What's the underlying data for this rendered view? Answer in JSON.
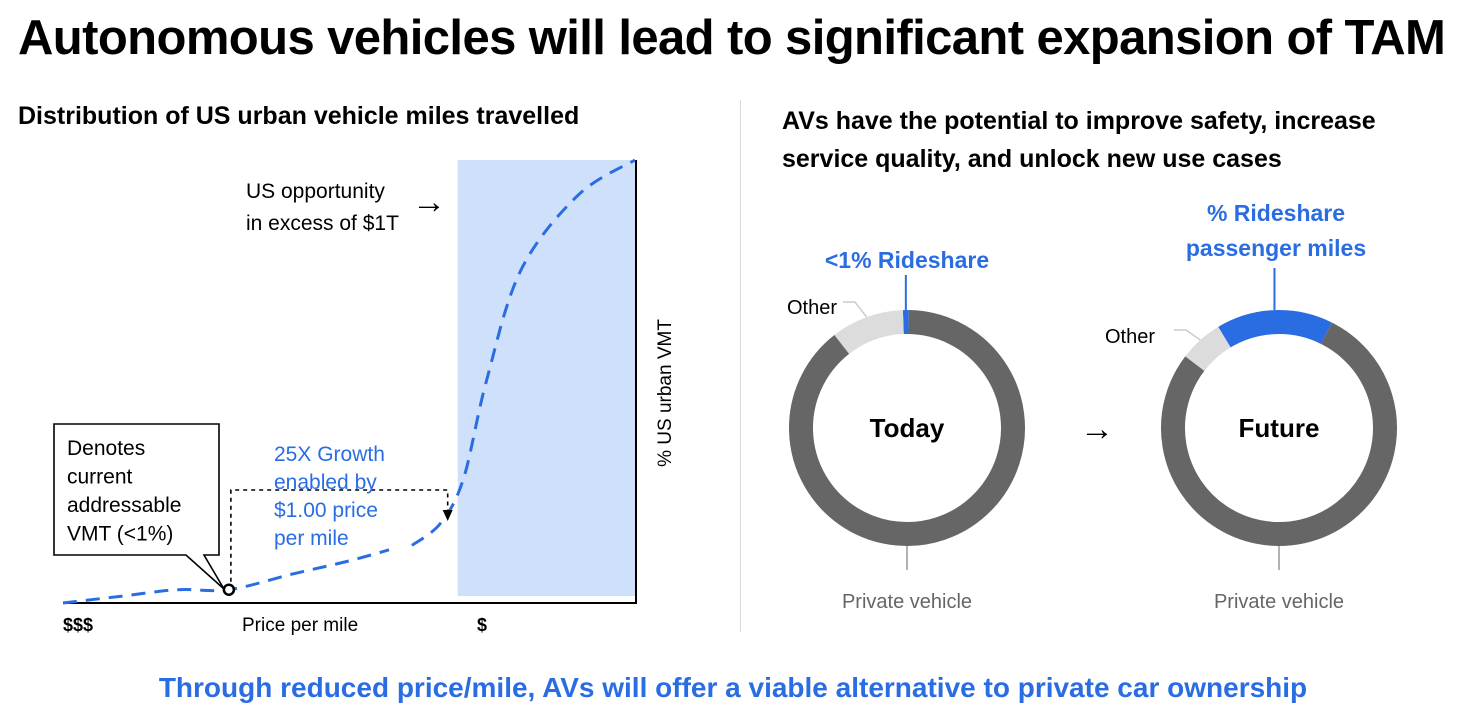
{
  "title": "Autonomous vehicles will lead to significant expansion of TAM",
  "left": {
    "subtitle": "Distribution of US urban vehicle miles travelled"
  },
  "right": {
    "subtitle": "AVs have the potential to improve safety, increase service quality, and unlock new use cases"
  },
  "footer": "Through reduced price/mile, AVs will offer a viable alternative to private car ownership",
  "colors": {
    "accent": "#2a6de2",
    "shade": "#cfe0fb",
    "dark_gray": "#666666",
    "light_gray": "#dcdcdc"
  },
  "arrow_between_donuts": "→",
  "chart_data": [
    {
      "type": "line",
      "title": "Distribution of US urban vehicle miles travelled",
      "xlabel": "Price per mile",
      "ylabel": "% US urban VMT",
      "x_tick_left": "$$$",
      "x_tick_right": "$",
      "xlim": [
        0,
        100
      ],
      "ylim": [
        0,
        100
      ],
      "curve_style": "dashed",
      "current_point": {
        "x": 29,
        "y": 3
      },
      "current_segment_end": 57,
      "future_segment_start": 61,
      "shaded_region_x": [
        69,
        100
      ],
      "series": [
        {
          "name": "% US urban VMT",
          "x": [
            0,
            10,
            20,
            29,
            40,
            50,
            57,
            61,
            66,
            70,
            74,
            80,
            90,
            100
          ],
          "y": [
            0,
            1.5,
            3,
            3,
            6.5,
            9.5,
            12,
            13,
            18,
            28,
            50,
            75,
            92,
            100
          ]
        }
      ],
      "annotations": {
        "opportunity": {
          "lines": [
            "US opportunity",
            "in excess of $1T"
          ],
          "arrow": "→"
        },
        "current_box": {
          "lines": [
            "Denotes",
            "current",
            "addressable",
            "VMT (<1%)"
          ]
        },
        "growth": {
          "lines": [
            "25X Growth",
            "enabled by",
            "$1.00 price",
            "per mile"
          ]
        }
      }
    },
    {
      "type": "pie",
      "title": "Today",
      "style": "donut",
      "labels": [
        "Rideshare",
        "Other",
        "Private vehicle"
      ],
      "values": [
        0.8,
        10,
        89.2
      ],
      "label_text": {
        "rideshare": "<1% Rideshare",
        "other": "Other",
        "private": "Private vehicle"
      }
    },
    {
      "type": "pie",
      "title": "Future",
      "style": "donut",
      "labels": [
        "Rideshare",
        "Other",
        "Private vehicle"
      ],
      "values": [
        16,
        6,
        78
      ],
      "label_text": {
        "rideshare_line1": "% Rideshare",
        "rideshare_line2": "passenger miles",
        "other": "Other",
        "private": "Private vehicle"
      }
    }
  ]
}
